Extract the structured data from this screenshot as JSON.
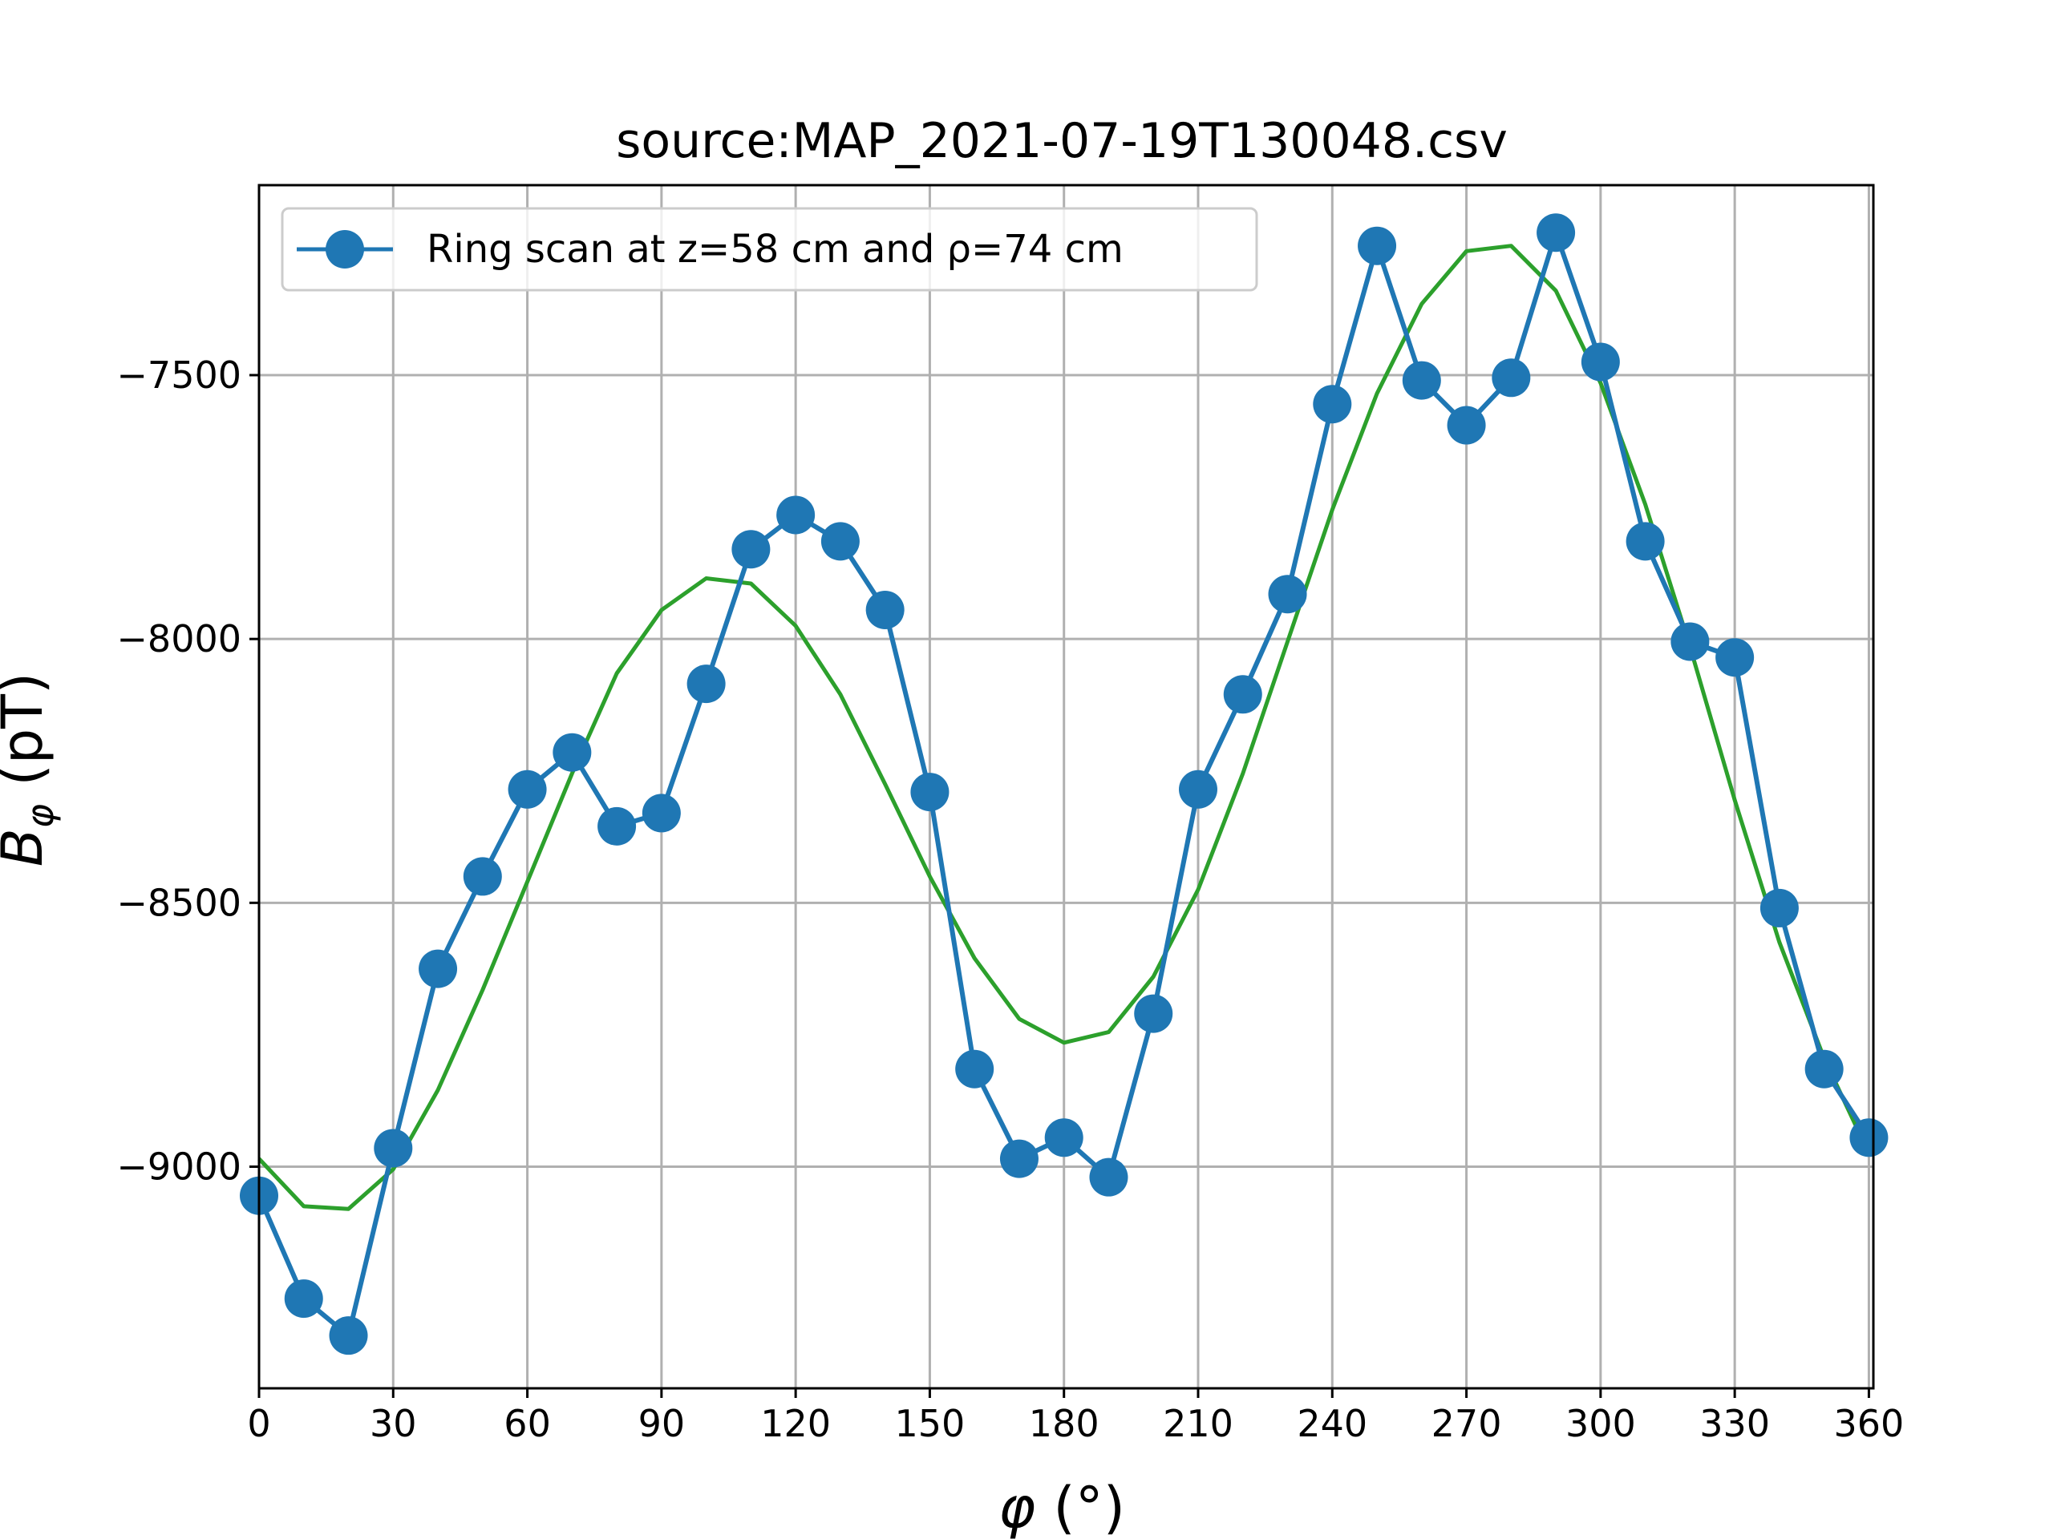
{
  "chart_data": {
    "type": "line",
    "title": "source:MAP_2021-07-19T130048.csv",
    "xlabel": "φ (°)",
    "ylabel": "B_φ (pT)",
    "xlim": [
      0,
      361
    ],
    "ylim": [
      -9420,
      -7140
    ],
    "xticks": [
      0,
      30,
      60,
      90,
      120,
      150,
      180,
      210,
      240,
      270,
      300,
      330,
      360
    ],
    "yticks": [
      -9000,
      -8500,
      -8000,
      -7500
    ],
    "ytick_labels": [
      "−9000",
      "−8500",
      "−8000",
      "−7500"
    ],
    "grid": true,
    "legend_position": "top-left",
    "series": [
      {
        "name": "Ring scan at z=58 cm and ρ=74 cm",
        "color": "#1f77b4",
        "marker": "circle",
        "x": [
          0,
          10,
          20,
          30,
          40,
          50,
          60,
          70,
          80,
          90,
          100,
          110,
          120,
          130,
          140,
          150,
          160,
          170,
          180,
          190,
          200,
          210,
          220,
          230,
          240,
          250,
          260,
          270,
          280,
          290,
          300,
          310,
          320,
          330,
          340,
          350,
          360
        ],
        "y": [
          -9055,
          -9250,
          -9320,
          -8965,
          -8625,
          -8450,
          -8285,
          -8215,
          -8355,
          -8330,
          -8085,
          -7830,
          -7765,
          -7815,
          -7945,
          -8290,
          -8815,
          -8985,
          -8945,
          -9020,
          -8710,
          -8285,
          -8105,
          -7915,
          -7555,
          -7255,
          -7510,
          -7595,
          -7505,
          -7230,
          -7475,
          -7815,
          -8005,
          -8035,
          -8510,
          -8815,
          -8945
        ]
      },
      {
        "name": "",
        "color": "#2ca02c",
        "marker": "none",
        "x": [
          0,
          10,
          20,
          30,
          40,
          50,
          60,
          70,
          80,
          90,
          100,
          110,
          120,
          130,
          140,
          150,
          160,
          170,
          180,
          190,
          200,
          210,
          220,
          230,
          240,
          250,
          260,
          270,
          280,
          290,
          300,
          310,
          320,
          330,
          340,
          350,
          360
        ],
        "y": [
          -8985,
          -9075,
          -9080,
          -9005,
          -8855,
          -8665,
          -8460,
          -8255,
          -8065,
          -7945,
          -7885,
          -7895,
          -7975,
          -8105,
          -8275,
          -8450,
          -8605,
          -8720,
          -8765,
          -8745,
          -8640,
          -8475,
          -8255,
          -8005,
          -7755,
          -7535,
          -7365,
          -7265,
          -7255,
          -7340,
          -7515,
          -7745,
          -8015,
          -8305,
          -8575,
          -8795,
          -8975
        ]
      }
    ]
  }
}
